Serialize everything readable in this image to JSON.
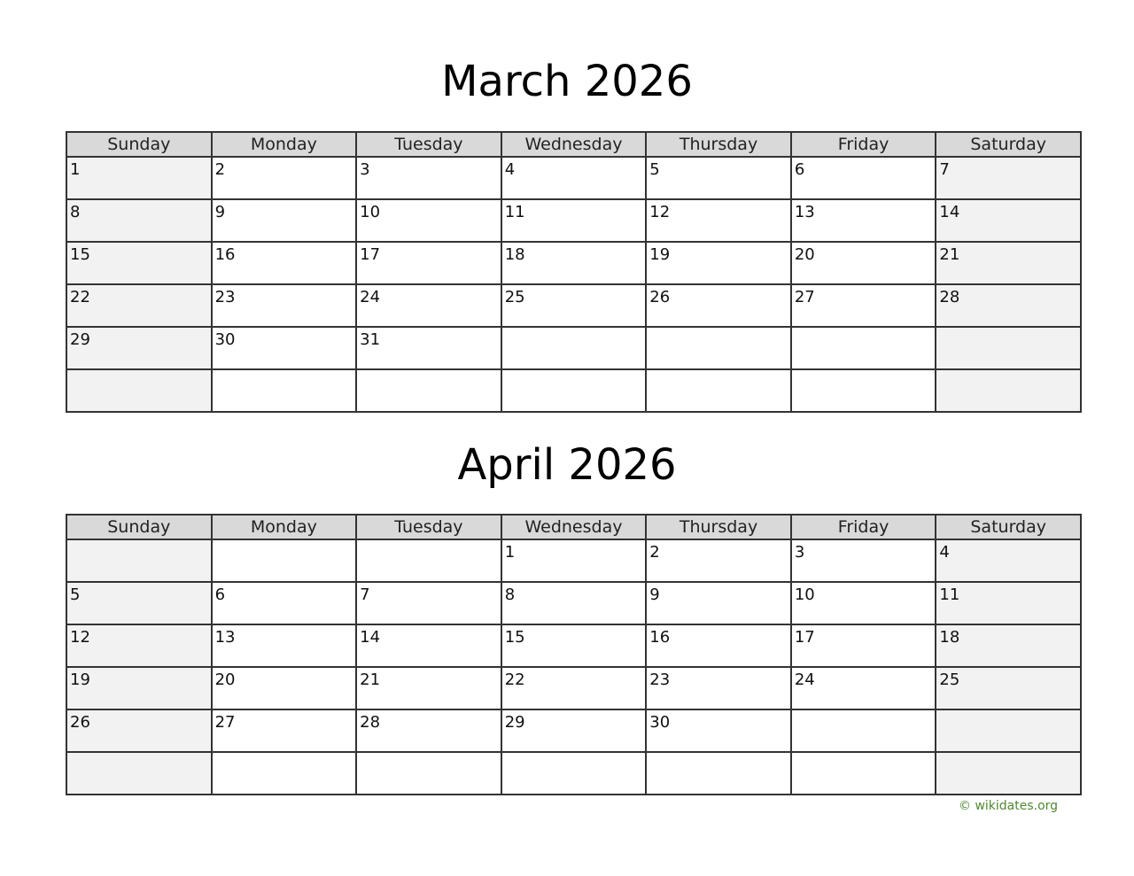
{
  "weekdays": [
    "Sunday",
    "Monday",
    "Tuesday",
    "Wednesday",
    "Thursday",
    "Friday",
    "Saturday"
  ],
  "months": [
    {
      "title": "March 2026",
      "weeks": [
        [
          "1",
          "2",
          "3",
          "4",
          "5",
          "6",
          "7"
        ],
        [
          "8",
          "9",
          "10",
          "11",
          "12",
          "13",
          "14"
        ],
        [
          "15",
          "16",
          "17",
          "18",
          "19",
          "20",
          "21"
        ],
        [
          "22",
          "23",
          "24",
          "25",
          "26",
          "27",
          "28"
        ],
        [
          "29",
          "30",
          "31",
          "",
          "",
          "",
          ""
        ],
        [
          "",
          "",
          "",
          "",
          "",
          "",
          ""
        ]
      ]
    },
    {
      "title": "April 2026",
      "weeks": [
        [
          "",
          "",
          "",
          "1",
          "2",
          "3",
          "4"
        ],
        [
          "5",
          "6",
          "7",
          "8",
          "9",
          "10",
          "11"
        ],
        [
          "12",
          "13",
          "14",
          "15",
          "16",
          "17",
          "18"
        ],
        [
          "19",
          "20",
          "21",
          "22",
          "23",
          "24",
          "25"
        ],
        [
          "26",
          "27",
          "28",
          "29",
          "30",
          "",
          ""
        ],
        [
          "",
          "",
          "",
          "",
          "",
          "",
          ""
        ]
      ]
    }
  ],
  "footer": "© wikidates.org",
  "colors": {
    "header_bg": "#d9d9d9",
    "weekend_bg": "#f2f2f2",
    "footer": "#4e8a2e"
  }
}
